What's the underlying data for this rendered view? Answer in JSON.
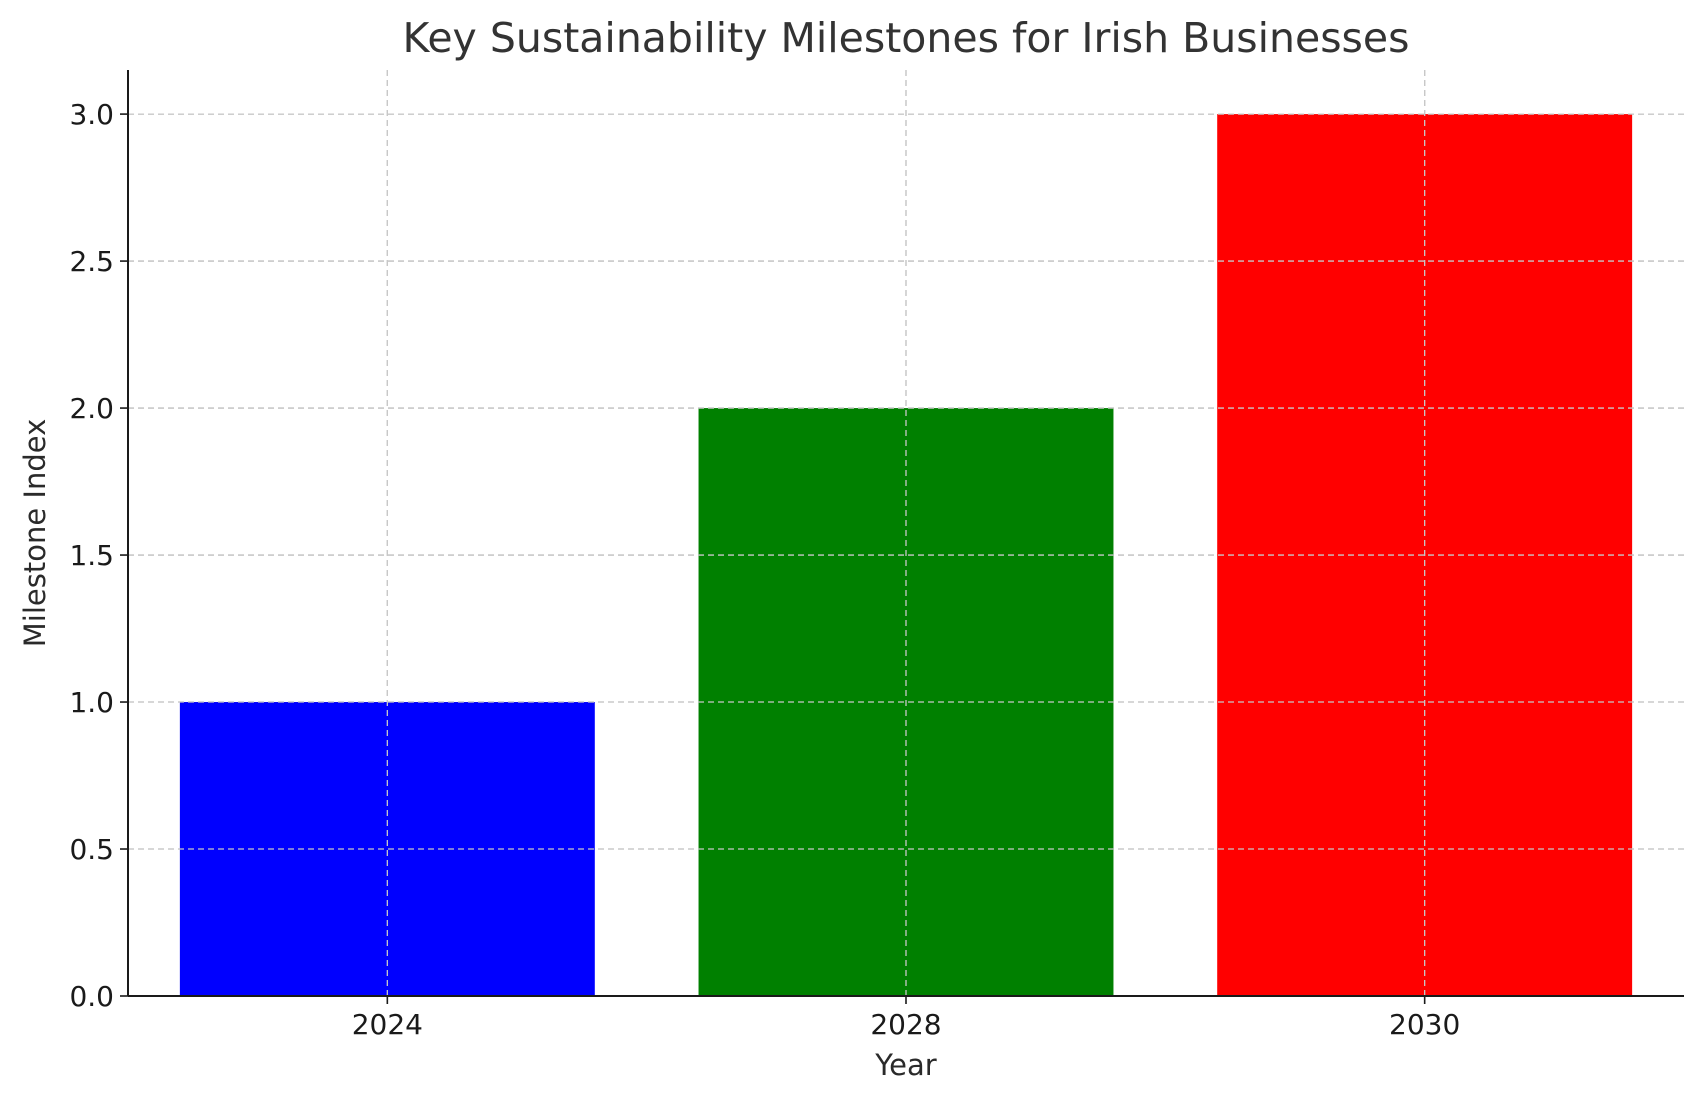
{
  "chart_data": {
    "type": "bar",
    "title": "Key Sustainability Milestones for Irish Businesses",
    "xlabel": "Year",
    "ylabel": "Milestone Index",
    "categories": [
      "2024",
      "2028",
      "2030"
    ],
    "values": [
      1,
      2,
      3
    ],
    "colors": [
      "#0000ff",
      "#008000",
      "#ff0000"
    ],
    "ylim": [
      0,
      3.15
    ],
    "yticks": [
      0.0,
      0.5,
      1.0,
      1.5,
      2.0,
      2.5,
      3.0
    ],
    "ytick_labels": [
      "0.0",
      "0.5",
      "1.0",
      "1.5",
      "2.0",
      "2.5",
      "3.0"
    ],
    "grid": true,
    "grid_style": "dashed",
    "legend": "none"
  }
}
